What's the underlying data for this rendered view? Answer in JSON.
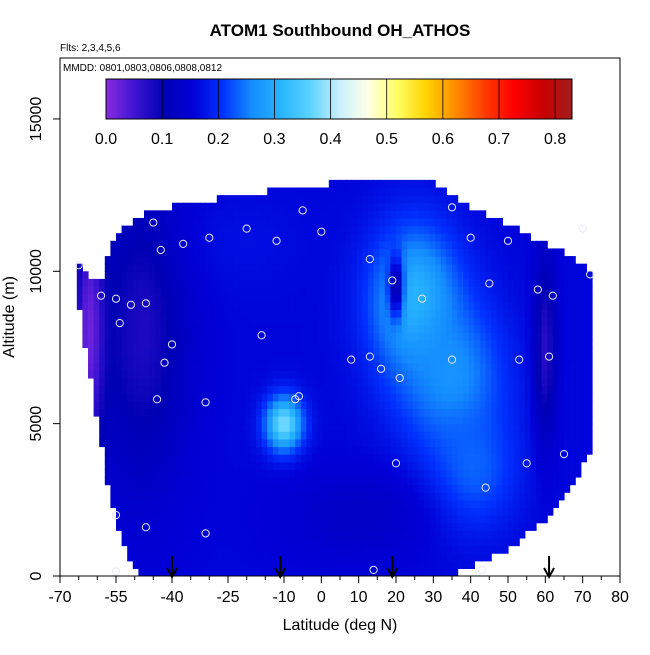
{
  "chart_data": {
    "type": "heatmap",
    "title": "ATOM1 Southbound OH_ATHOS",
    "flights_note": "Flts: 2,3,4,5,6",
    "dates_note": "MMDD: 0801,0803,0806,0808,0812",
    "xlabel": "Latitude (deg N)",
    "ylabel": "Altitude (m)",
    "xlim": [
      -70,
      80
    ],
    "ylim": [
      0,
      17000
    ],
    "x_ticks": [
      -70,
      -55,
      -40,
      -25,
      -10,
      0,
      10,
      20,
      30,
      40,
      50,
      60,
      70,
      80
    ],
    "x_tick_labels": [
      "-70",
      "-55",
      "-40",
      "-25",
      "-10",
      "0",
      "10",
      "20",
      "30",
      "40",
      "50",
      "60",
      "70",
      "80"
    ],
    "x_minor_ticks": [
      -65,
      -60,
      -50,
      -45,
      -35,
      -30,
      -20,
      -15,
      -5,
      5,
      15,
      25,
      35,
      45,
      55,
      65,
      75
    ],
    "y_ticks": [
      0,
      5000,
      10000,
      15000
    ],
    "y_tick_labels": [
      "0",
      "5000",
      "10000",
      "15000"
    ],
    "colorbar": {
      "min": 0.0,
      "max": 0.83,
      "ticks": [
        0.0,
        0.1,
        0.2,
        0.3,
        0.4,
        0.5,
        0.6,
        0.7,
        0.8
      ],
      "tick_labels": [
        "0.0",
        "0.1",
        "0.2",
        "0.3",
        "0.4",
        "0.5",
        "0.6",
        "0.7",
        "0.8"
      ],
      "colors": [
        "#8a2be2",
        "#3c14d2",
        "#0000b4",
        "#0000d7",
        "#0032ff",
        "#148cff",
        "#28b4ff",
        "#5ad2ff",
        "#c8f0ff",
        "#ffffe6",
        "#ffff64",
        "#ffd200",
        "#ff8c00",
        "#ff3c00",
        "#ff0000",
        "#c80000",
        "#a01e1e"
      ]
    },
    "envelope": [
      [
        -65,
        10300,
        9000
      ],
      [
        -63,
        9800,
        7500
      ],
      [
        -61,
        9600,
        6000
      ],
      [
        -59,
        9500,
        4500
      ],
      [
        -57,
        10500,
        3000
      ],
      [
        -55,
        11000,
        2000
      ],
      [
        -53,
        11300,
        1200
      ],
      [
        -51,
        11500,
        600
      ],
      [
        -48,
        11700,
        200
      ],
      [
        -45,
        11900,
        0
      ],
      [
        -40,
        12000,
        0
      ],
      [
        -35,
        12100,
        0
      ],
      [
        -30,
        12200,
        0
      ],
      [
        -25,
        12300,
        0
      ],
      [
        -20,
        12400,
        0
      ],
      [
        -15,
        12500,
        0
      ],
      [
        -10,
        12600,
        0
      ],
      [
        -5,
        12600,
        0
      ],
      [
        0,
        12700,
        0
      ],
      [
        5,
        12900,
        0
      ],
      [
        10,
        12900,
        0
      ],
      [
        15,
        12900,
        0
      ],
      [
        20,
        12900,
        0
      ],
      [
        25,
        12900,
        0
      ],
      [
        30,
        12800,
        0
      ],
      [
        35,
        12400,
        200
      ],
      [
        40,
        12000,
        400
      ],
      [
        45,
        11700,
        700
      ],
      [
        50,
        11400,
        1000
      ],
      [
        55,
        11100,
        1500
      ],
      [
        60,
        10800,
        2000
      ],
      [
        65,
        10500,
        2800
      ],
      [
        69,
        10200,
        3500
      ],
      [
        72,
        9900,
        4200
      ]
    ],
    "field_features": [
      {
        "lat": -48,
        "alt": 8000,
        "value": 0.08,
        "spread_lat": 12,
        "spread_alt": 5000
      },
      {
        "lat": -62,
        "alt": 8000,
        "value": 0.02,
        "spread_lat": 4,
        "spread_alt": 4000
      },
      {
        "lat": -10,
        "alt": 5000,
        "value": 0.38,
        "spread_lat": 5,
        "spread_alt": 900
      },
      {
        "lat": 25,
        "alt": 9000,
        "value": 0.32,
        "spread_lat": 12,
        "spread_alt": 2500
      },
      {
        "lat": 35,
        "alt": 6500,
        "value": 0.27,
        "spread_lat": 14,
        "spread_alt": 2500
      },
      {
        "lat": 40,
        "alt": 3500,
        "value": 0.24,
        "spread_lat": 12,
        "spread_alt": 2000
      },
      {
        "lat": 60,
        "alt": 7500,
        "value": 0.07,
        "spread_lat": 3,
        "spread_alt": 3000
      },
      {
        "lat": 20,
        "alt": 9500,
        "value": 0.09,
        "spread_lat": 2,
        "spread_alt": 1000
      },
      {
        "lat": -20,
        "alt": 11000,
        "value": 0.17,
        "spread_lat": 15,
        "spread_alt": 1500
      },
      {
        "lat": 10,
        "alt": 2000,
        "value": 0.13,
        "spread_lat": 20,
        "spread_alt": 1500
      }
    ],
    "sample_points": [
      [
        -65,
        10200
      ],
      [
        -59,
        9200
      ],
      [
        -55,
        9100
      ],
      [
        -54,
        8300
      ],
      [
        -51,
        8900
      ],
      [
        -47,
        8950
      ],
      [
        -45,
        11600
      ],
      [
        -43,
        10700
      ],
      [
        -37,
        10900
      ],
      [
        -30,
        11100
      ],
      [
        -20,
        11400
      ],
      [
        -12,
        11000
      ],
      [
        -5,
        12000
      ],
      [
        0,
        11300
      ],
      [
        -42,
        7000
      ],
      [
        -40,
        7600
      ],
      [
        -44,
        5800
      ],
      [
        -31,
        5700
      ],
      [
        -16,
        7900
      ],
      [
        -7,
        5800
      ],
      [
        -55,
        2000
      ],
      [
        -47,
        1600
      ],
      [
        -31,
        1400
      ],
      [
        -55,
        150
      ],
      [
        13,
        10400
      ],
      [
        19,
        9700
      ],
      [
        27,
        9100
      ],
      [
        35,
        12100
      ],
      [
        40,
        11100
      ],
      [
        45,
        9600
      ],
      [
        50,
        11000
      ],
      [
        58,
        9400
      ],
      [
        62,
        9200
      ],
      [
        70,
        11400
      ],
      [
        72,
        9900
      ],
      [
        8,
        7100
      ],
      [
        13,
        7200
      ],
      [
        16,
        6800
      ],
      [
        21,
        6500
      ],
      [
        35,
        7100
      ],
      [
        53,
        7100
      ],
      [
        61,
        7200
      ],
      [
        65,
        4000
      ],
      [
        55,
        3700
      ],
      [
        20,
        3700
      ],
      [
        44,
        2900
      ],
      [
        14,
        200
      ],
      [
        43,
        200
      ],
      [
        -6,
        5900
      ]
    ],
    "arrows_lat": [
      -40,
      -11,
      19,
      61
    ]
  }
}
